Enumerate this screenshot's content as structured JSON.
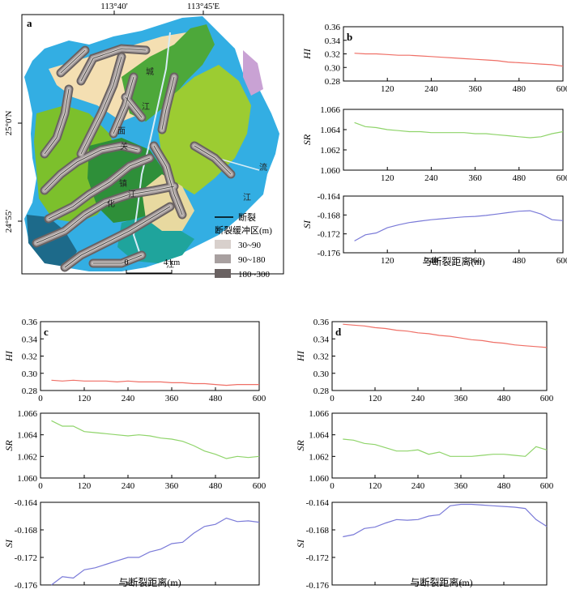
{
  "map": {
    "panel_letter": "a",
    "lon_labels": [
      "113°40'",
      "113°45'E"
    ],
    "lat_labels": [
      "25°0'N",
      "24°55'"
    ],
    "map_text": [
      "城",
      "江",
      "面",
      "关",
      "镇",
      "化",
      "江",
      "江",
      "流",
      "江"
    ],
    "legend": {
      "fault_label": "断裂",
      "buffer_title": "断裂缓冲区(m)",
      "classes": [
        {
          "label": "30~90",
          "color": "#d8d0cc"
        },
        {
          "label": "90~180",
          "color": "#a8a0a0"
        },
        {
          "label": "180~300",
          "color": "#6a6262"
        }
      ]
    },
    "scalebar": {
      "zero": "0",
      "distance": "4 km"
    }
  },
  "chart_data": [
    {
      "panel": "b",
      "type": "line",
      "x": [
        30,
        60,
        90,
        120,
        150,
        180,
        210,
        240,
        270,
        300,
        330,
        360,
        390,
        420,
        450,
        480,
        510,
        540,
        570,
        600
      ],
      "x_ticks": [
        "120",
        "240",
        "360",
        "480",
        "600"
      ],
      "xlim": [
        0,
        600
      ],
      "xlabel": "与断裂距离(m)",
      "series": [
        {
          "name": "HI",
          "color": "#ef6f66",
          "ylim": [
            0.28,
            0.36
          ],
          "y_ticks": [
            "0.36",
            "0.34",
            "0.32",
            "0.30",
            "0.28"
          ],
          "grid_step": 0.02,
          "values": [
            0.321,
            0.32,
            0.32,
            0.319,
            0.318,
            0.318,
            0.317,
            0.316,
            0.315,
            0.314,
            0.313,
            0.312,
            0.311,
            0.31,
            0.308,
            0.307,
            0.306,
            0.305,
            0.304,
            0.302
          ]
        },
        {
          "name": "SR",
          "color": "#8fd46a",
          "ylim": [
            1.06,
            1.066
          ],
          "y_ticks": [
            "1.066",
            "1.064",
            "1.062",
            "1.060"
          ],
          "grid_step": 0.002,
          "values": [
            1.0647,
            1.0643,
            1.0642,
            1.064,
            1.0639,
            1.0638,
            1.0638,
            1.0637,
            1.0637,
            1.0637,
            1.0637,
            1.0636,
            1.0636,
            1.0635,
            1.0634,
            1.0633,
            1.0632,
            1.0633,
            1.0636,
            1.0638
          ]
        },
        {
          "name": "SI",
          "color": "#7a7ad8",
          "ylim": [
            -0.176,
            -0.164
          ],
          "y_ticks": [
            "-0.164",
            "-0.168",
            "-0.172",
            "-0.176"
          ],
          "grid_step": 0.004,
          "values": [
            -0.1735,
            -0.1722,
            -0.1718,
            -0.1707,
            -0.1701,
            -0.1696,
            -0.1693,
            -0.169,
            -0.1688,
            -0.1686,
            -0.1684,
            -0.1683,
            -0.1681,
            -0.1678,
            -0.1675,
            -0.1672,
            -0.1671,
            -0.1678,
            -0.169,
            -0.1692
          ]
        }
      ]
    },
    {
      "panel": "c",
      "type": "line",
      "x": [
        30,
        60,
        90,
        120,
        150,
        180,
        210,
        240,
        270,
        300,
        330,
        360,
        390,
        420,
        450,
        480,
        510,
        540,
        570,
        600
      ],
      "x_ticks": [
        "0",
        "120",
        "240",
        "360",
        "480",
        "600"
      ],
      "xlim": [
        0,
        600
      ],
      "xlabel": "与断裂距离(m)",
      "series": [
        {
          "name": "HI",
          "color": "#ef6f66",
          "ylim": [
            0.28,
            0.36
          ],
          "y_ticks": [
            "0.36",
            "0.34",
            "0.32",
            "0.30",
            "0.28"
          ],
          "grid_step": 0.02,
          "values": [
            0.292,
            0.291,
            0.292,
            0.291,
            0.291,
            0.291,
            0.29,
            0.291,
            0.29,
            0.29,
            0.29,
            0.289,
            0.289,
            0.288,
            0.288,
            0.287,
            0.286,
            0.287,
            0.287,
            0.287
          ]
        },
        {
          "name": "SR",
          "color": "#8fd46a",
          "ylim": [
            1.06,
            1.066
          ],
          "y_ticks": [
            "1.066",
            "1.064",
            "1.062",
            "1.060"
          ],
          "grid_step": 0.002,
          "values": [
            1.0653,
            1.0648,
            1.0648,
            1.0643,
            1.0642,
            1.0641,
            1.064,
            1.0639,
            1.064,
            1.0639,
            1.0637,
            1.0636,
            1.0634,
            1.063,
            1.0625,
            1.0622,
            1.0618,
            1.062,
            1.0619,
            1.062
          ]
        },
        {
          "name": "SI",
          "color": "#7a7ad8",
          "ylim": [
            -0.176,
            -0.164
          ],
          "y_ticks": [
            "-0.164",
            "-0.168",
            "-0.172",
            "-0.176"
          ],
          "grid_step": 0.004,
          "values": [
            -0.176,
            -0.1748,
            -0.175,
            -0.1738,
            -0.1735,
            -0.173,
            -0.1725,
            -0.172,
            -0.172,
            -0.1712,
            -0.1708,
            -0.17,
            -0.1698,
            -0.1685,
            -0.1675,
            -0.1672,
            -0.1663,
            -0.1668,
            -0.1667,
            -0.1669
          ]
        }
      ]
    },
    {
      "panel": "d",
      "type": "line",
      "x": [
        30,
        60,
        90,
        120,
        150,
        180,
        210,
        240,
        270,
        300,
        330,
        360,
        390,
        420,
        450,
        480,
        510,
        540,
        570,
        600
      ],
      "x_ticks": [
        "0",
        "120",
        "240",
        "360",
        "480",
        "600"
      ],
      "xlim": [
        0,
        600
      ],
      "xlabel": "与断裂距离(m)",
      "series": [
        {
          "name": "HI",
          "color": "#ef6f66",
          "ylim": [
            0.28,
            0.36
          ],
          "y_ticks": [
            "0.36",
            "0.34",
            "0.32",
            "0.30",
            "0.28"
          ],
          "grid_step": 0.02,
          "values": [
            0.357,
            0.356,
            0.355,
            0.353,
            0.352,
            0.35,
            0.349,
            0.347,
            0.346,
            0.344,
            0.343,
            0.341,
            0.339,
            0.338,
            0.336,
            0.335,
            0.333,
            0.332,
            0.331,
            0.33
          ]
        },
        {
          "name": "SR",
          "color": "#8fd46a",
          "ylim": [
            1.06,
            1.066
          ],
          "y_ticks": [
            "1.066",
            "1.064",
            "1.062",
            "1.060"
          ],
          "grid_step": 0.002,
          "values": [
            1.0636,
            1.0635,
            1.0632,
            1.0631,
            1.0628,
            1.0625,
            1.0625,
            1.0626,
            1.0622,
            1.0624,
            1.062,
            1.062,
            1.062,
            1.0621,
            1.0622,
            1.0622,
            1.0621,
            1.062,
            1.0629,
            1.0626
          ]
        },
        {
          "name": "SI",
          "color": "#7a7ad8",
          "ylim": [
            -0.176,
            -0.164
          ],
          "y_ticks": [
            "-0.164",
            "-0.168",
            "-0.172",
            "-0.176"
          ],
          "grid_step": 0.004,
          "values": [
            -0.169,
            -0.1687,
            -0.1678,
            -0.1676,
            -0.167,
            -0.1665,
            -0.1666,
            -0.1665,
            -0.166,
            -0.1658,
            -0.1645,
            -0.1643,
            -0.1643,
            -0.1644,
            -0.1645,
            -0.1646,
            -0.1647,
            -0.1649,
            -0.1665,
            -0.1675
          ]
        }
      ]
    }
  ]
}
